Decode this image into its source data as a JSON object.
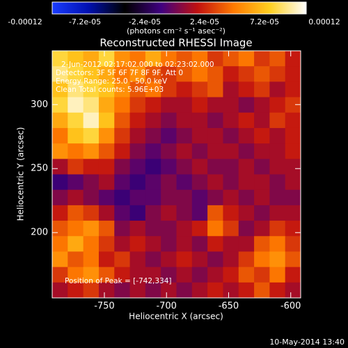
{
  "chart_data": {
    "type": "heatmap",
    "title": "Reconstructed RHESSI Image",
    "colorbar_label": "(photons cm⁻² s⁻¹ asec⁻²)",
    "clim": [
      -0.00012,
      0.00012
    ],
    "cticks": [
      -0.00012,
      {
        "value": -7.2e-05,
        "label": "-7.2e-05"
      },
      {
        "value": -2.4e-05,
        "label": "-2.4e-05"
      },
      {
        "value": 2.4e-05,
        "label": "2.4e-05"
      },
      {
        "value": 7.2e-05,
        "label": "7.2e-05"
      },
      0.00012
    ],
    "colormap": [
      "#1a3cff",
      "#0010b0",
      "#000000",
      "#400080",
      "#c01010",
      "#ff7a00",
      "#ffd020",
      "#ffffff"
    ],
    "xlabel": "Heliocentric X (arcsec)",
    "ylabel": "Heliocentric Y (arcsec)",
    "xlim": [
      -792,
      -592
    ],
    "ylim": [
      149,
      342
    ],
    "xticks": [
      -750,
      -700,
      -650,
      -600
    ],
    "yticks": [
      200,
      250,
      300
    ],
    "annotations": [
      "2-Jun-2012 02:17:02.000 to 02:23:02.000",
      "Detectors: 3F 5F 6F 7F 8F 9F, Att 0",
      "Energy Range: 25.0 - 50.0 keV",
      "Clean    Total counts: 5.96E+03"
    ],
    "peak_label": "Position of Peak = [-742,334]",
    "timestamp": "10-May-2014 13:40",
    "z": [
      [
        9e-05,
        8e-05,
        7e-05,
        9e-05,
        6e-05,
        5e-05,
        7e-05,
        5e-05,
        4e-05,
        5e-05,
        3e-05,
        4e-05,
        5e-05,
        3e-05,
        4e-05,
        2e-05
      ],
      [
        0.0001,
        9e-05,
        8e-05,
        7e-05,
        5e-05,
        6e-05,
        4e-05,
        3e-05,
        4e-05,
        5e-05,
        4e-05,
        2e-05,
        3e-05,
        4e-05,
        3e-05,
        2e-05
      ],
      [
        8e-05,
        0.0001,
        9e-05,
        8e-05,
        6e-05,
        4e-05,
        5e-05,
        3e-05,
        2e-05,
        3e-05,
        4e-05,
        1e-05,
        2e-05,
        3e-05,
        1e-05,
        2e-05
      ],
      [
        9e-05,
        0.00011,
        0.0001,
        7e-05,
        5e-05,
        3e-05,
        2e-05,
        1e-05,
        1e-05,
        2e-05,
        1e-05,
        1e-05,
        0,
        1e-05,
        2e-05,
        3e-05
      ],
      [
        7e-05,
        9e-05,
        0.00011,
        8e-05,
        4e-05,
        2e-05,
        1e-05,
        0,
        1e-05,
        1e-05,
        0,
        1e-05,
        2e-05,
        1e-05,
        3e-05,
        2e-05
      ],
      [
        5e-05,
        8e-05,
        9e-05,
        6e-05,
        3e-05,
        1e-05,
        0,
        -1e-05,
        0,
        1e-05,
        1e-05,
        0,
        1e-05,
        2e-05,
        1e-05,
        2e-05
      ],
      [
        6e-05,
        5e-05,
        6e-05,
        4e-05,
        2e-05,
        0,
        -1e-05,
        0,
        1e-05,
        0,
        1e-05,
        1e-05,
        0,
        1e-05,
        1e-05,
        2e-05
      ],
      [
        1e-05,
        3e-05,
        2e-05,
        2e-05,
        0,
        -1e-05,
        -2e-05,
        -1e-05,
        0,
        1e-05,
        0,
        0,
        1e-05,
        0,
        1e-05,
        1e-05
      ],
      [
        -2e-05,
        -1e-05,
        0,
        1e-05,
        -1e-05,
        -2e-05,
        -1e-05,
        0,
        -1e-05,
        0,
        1e-05,
        0,
        1e-05,
        1e-05,
        0,
        1e-05
      ],
      [
        0,
        1e-05,
        0,
        -1e-05,
        -2e-05,
        -1e-05,
        -1e-05,
        0,
        0,
        -1e-05,
        0,
        1e-05,
        0,
        1e-05,
        0,
        0
      ],
      [
        2e-05,
        4e-05,
        3e-05,
        1e-05,
        -1e-05,
        -2e-05,
        0,
        1e-05,
        0,
        -1e-05,
        4e-05,
        2e-05,
        1e-05,
        0,
        1e-05,
        1e-05
      ],
      [
        4e-05,
        5e-05,
        6e-05,
        4e-05,
        0,
        1e-05,
        0,
        0,
        1e-05,
        2e-05,
        5e-05,
        3e-05,
        0,
        1e-05,
        3e-05,
        2e-05
      ],
      [
        5e-05,
        7e-05,
        5e-05,
        3e-05,
        1e-05,
        2e-05,
        1e-05,
        0,
        1e-05,
        0,
        2e-05,
        1e-05,
        1e-05,
        4e-05,
        5e-05,
        3e-05
      ],
      [
        6e-05,
        4e-05,
        5e-05,
        2e-05,
        3e-05,
        1e-05,
        0,
        1e-05,
        2e-05,
        1e-05,
        0,
        1e-05,
        3e-05,
        5e-05,
        6e-05,
        4e-05
      ],
      [
        3e-05,
        5e-05,
        6e-05,
        4e-05,
        2e-05,
        1e-05,
        1e-05,
        0,
        1e-05,
        0,
        1e-05,
        2e-05,
        4e-05,
        3e-05,
        5e-05,
        2e-05
      ],
      [
        1e-05,
        2e-05,
        3e-05,
        1e-05,
        0,
        1e-05,
        0,
        1e-05,
        0,
        1e-05,
        2e-05,
        1e-05,
        2e-05,
        4e-05,
        2e-05,
        1e-05
      ]
    ]
  }
}
